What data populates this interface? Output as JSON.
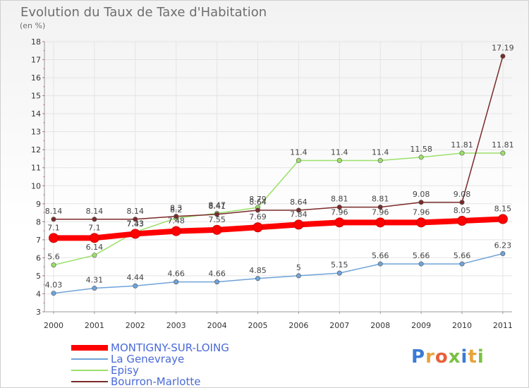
{
  "title": "Evolution du Taux de Taxe d'Habitation",
  "unit_label": "(en %)",
  "logo_text": "Proxiti",
  "chart_data": {
    "type": "line",
    "title": "Evolution du Taux de Taxe d'Habitation",
    "ylabel": "(en %)",
    "ylim": [
      3,
      18
    ],
    "yticks": [
      3,
      4,
      5,
      6,
      7,
      8,
      9,
      10,
      11,
      12,
      13,
      14,
      15,
      16,
      17,
      18
    ],
    "x": [
      "2000",
      "2001",
      "2002",
      "2003",
      "2004",
      "2005",
      "2006",
      "2007",
      "2008",
      "2009",
      "2010",
      "2011"
    ],
    "series": [
      {
        "name": "MONTIGNY-SUR-LOING",
        "color": "#ff0000",
        "values": [
          7.1,
          7.1,
          7.33,
          7.48,
          7.55,
          7.69,
          7.84,
          7.96,
          7.96,
          7.96,
          8.05,
          8.15
        ],
        "labels": [
          "7.1",
          "7.1",
          "7.33",
          "7.48",
          "7.55",
          "7.69",
          "7.84",
          "7.96",
          "7.96",
          "7.96",
          "8.05",
          "8.15"
        ]
      },
      {
        "name": "La Genevraye",
        "color": "#6fa3d8",
        "values": [
          4.03,
          4.31,
          4.44,
          4.66,
          4.66,
          4.85,
          5,
          5.15,
          5.66,
          5.66,
          5.66,
          6.23
        ],
        "labels": [
          "4.03",
          "4.31",
          "4.44",
          "4.66",
          "4.66",
          "4.85",
          "5",
          "5.15",
          "5.66",
          "5.66",
          "5.66",
          "6.23"
        ]
      },
      {
        "name": "Episy",
        "color": "#9be06a",
        "values": [
          5.6,
          6.14,
          7.43,
          8.2,
          8.47,
          8.79,
          11.4,
          11.4,
          11.4,
          11.58,
          11.81,
          11.81
        ],
        "labels": [
          "5.6",
          "6.14",
          "7.43",
          "8.2",
          "8.47",
          "8.79",
          "11.4",
          "11.4",
          "11.4",
          "11.58",
          "11.81",
          "11.81"
        ]
      },
      {
        "name": "Bourron-Marlotte",
        "color": "#7a2a2a",
        "values": [
          8.14,
          8.14,
          8.14,
          8.3,
          8.41,
          8.64,
          8.64,
          8.81,
          8.81,
          9.08,
          9.08,
          17.19
        ],
        "labels": [
          "8.14",
          "8.14",
          "8.14",
          "8.3",
          "8.41",
          "8.64",
          "8.64",
          "8.81",
          "8.81",
          "9.08",
          "9.08",
          "17.19"
        ]
      }
    ]
  }
}
